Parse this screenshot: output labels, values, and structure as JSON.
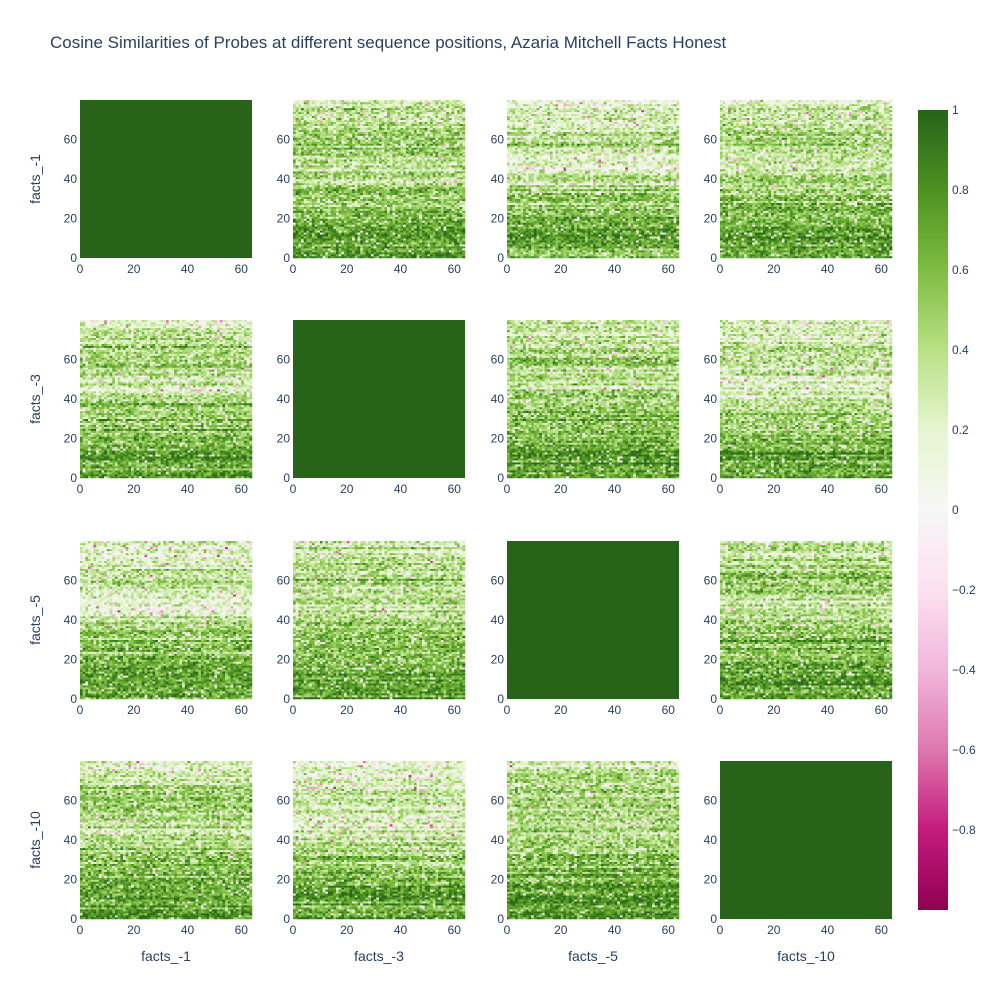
{
  "chart_data": {
    "type": "heatmap",
    "title": "Cosine Similarities of Probes at different sequence positions, Azaria Mitchell Facts Honest",
    "grid": {
      "rows": 4,
      "cols": 4
    },
    "row_labels": [
      "facts_-1",
      "facts_-3",
      "facts_-5",
      "facts_-10"
    ],
    "col_labels": [
      "facts_-1",
      "facts_-3",
      "facts_-5",
      "facts_-10"
    ],
    "x_range": [
      0,
      64
    ],
    "y_range": [
      0,
      80
    ],
    "x_ticks": [
      0,
      20,
      40,
      60
    ],
    "y_ticks": [
      0,
      20,
      40,
      60
    ],
    "cells_x": 64,
    "cells_y": 80,
    "diagonal_value": 1,
    "colorscale": {
      "name": "PiYG",
      "min": -1,
      "max": 1,
      "ticks": [
        1,
        0.8,
        0.6,
        0.4,
        0.2,
        0,
        -0.2,
        -0.4,
        -0.6,
        -0.8
      ],
      "tick_labels": [
        "1",
        "0.8",
        "0.6",
        "0.4",
        "0.2",
        "0",
        "−0.2",
        "−0.4",
        "−0.6",
        "−0.8"
      ]
    },
    "offdiagonal_row_means": [
      [
        0.72,
        0.68,
        0.75,
        0.7,
        0.62,
        0.55,
        0.5,
        0.42,
        0.3,
        0.2,
        0.28,
        0.38,
        0.34,
        0.25,
        0.22,
        0.18
      ],
      [
        0.74,
        0.72,
        0.76,
        0.7,
        0.62,
        0.58,
        0.55,
        0.5,
        0.42,
        0.35,
        0.42,
        0.5,
        0.48,
        0.4,
        0.35,
        0.3
      ]
    ]
  },
  "colors": {
    "text": "#2a3f5f",
    "diagonal": "#276419"
  }
}
